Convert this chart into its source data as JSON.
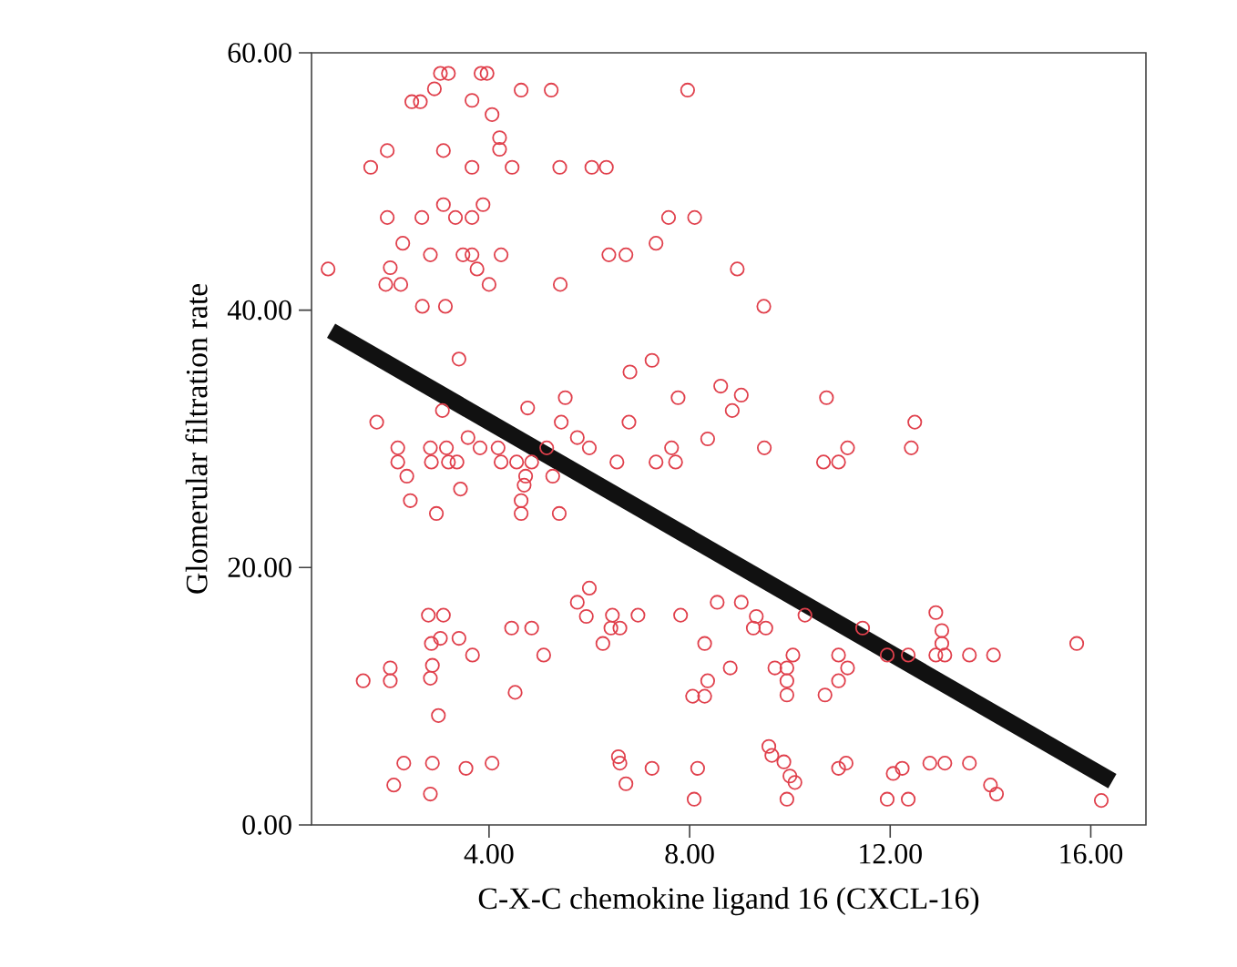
{
  "chart_data": {
    "type": "scatter",
    "xlabel": "C-X-C chemokine ligand 16 (CXCL-16)",
    "ylabel": "Glomerular filtration rate",
    "xlim": [
      0.46,
      17.1
    ],
    "ylim": [
      0,
      60
    ],
    "xticks": [
      {
        "value": 4,
        "label": "4.00"
      },
      {
        "value": 8,
        "label": "8.00"
      },
      {
        "value": 12,
        "label": "12.00"
      },
      {
        "value": 16,
        "label": "16.00"
      }
    ],
    "yticks": [
      {
        "value": 0,
        "label": "0.00"
      },
      {
        "value": 20,
        "label": "20.00"
      },
      {
        "value": 40,
        "label": "40.00"
      },
      {
        "value": 60,
        "label": "60.00"
      }
    ],
    "marker": "circle",
    "grid": false,
    "series": [
      {
        "color": "#e0404c",
        "x": [
          3.03,
          3.19,
          3.84,
          3.96,
          4.64,
          5.24,
          7.96,
          2.91,
          2.46,
          2.63,
          3.66,
          4.06,
          4.21,
          4.21,
          1.97,
          1.64,
          3.09,
          3.66,
          4.46,
          5.41,
          6.05,
          6.34,
          1.97,
          2.66,
          3.09,
          3.33,
          3.66,
          3.88,
          7.58,
          8.1,
          2.28,
          2.83,
          3.48,
          3.66,
          4.24,
          6.39,
          6.73,
          7.33,
          0.79,
          2.03,
          1.94,
          2.24,
          3.76,
          4.0,
          5.42,
          2.67,
          3.13,
          8.95,
          3.4,
          6.81,
          7.25,
          1.76,
          3.07,
          4.77,
          5.52,
          5.44,
          6.79,
          7.77,
          8.62,
          8.85,
          9.03,
          9.48,
          10.73,
          12.49,
          2.18,
          2.18,
          2.36,
          2.43,
          2.95,
          2.83,
          3.15,
          2.85,
          3.19,
          3.36,
          3.43,
          3.58,
          3.82,
          4.18,
          4.24,
          4.55,
          4.73,
          4.7,
          4.64,
          4.64,
          4.85,
          5.15,
          5.27,
          5.4,
          5.76,
          6.0,
          6.55,
          7.33,
          7.64,
          7.72,
          8.36,
          6.0,
          5.76,
          5.94,
          2.79,
          3.09,
          2.85,
          3.03,
          3.4,
          3.67,
          4.45,
          4.85,
          5.09,
          6.46,
          6.97,
          6.61,
          6.43,
          6.27,
          7.82,
          8.55,
          9.03,
          8.3,
          8.81,
          8.36,
          8.06,
          8.3,
          1.49,
          2.03,
          2.03,
          2.87,
          2.83,
          4.52,
          2.99,
          2.3,
          2.87,
          3.54,
          4.06,
          2.1,
          2.83,
          6.58,
          6.61,
          6.73,
          7.25,
          8.16,
          8.09,
          9.49,
          10.67,
          10.97,
          11.15,
          12.42,
          9.33,
          9.27,
          9.52,
          10.3,
          9.7,
          10.06,
          9.94,
          9.94,
          9.94,
          10.7,
          10.97,
          11.15,
          10.97,
          11.45,
          11.94,
          12.36,
          12.91,
          13.03,
          13.03,
          12.91,
          13.09,
          13.58,
          14.06,
          15.72,
          9.58,
          9.64,
          9.88,
          10.0,
          10.1,
          9.94,
          10.97,
          11.12,
          12.06,
          12.24,
          11.94,
          12.36,
          12.79,
          13.09,
          13.58,
          14.0,
          14.12,
          16.21
        ],
        "values": [
          58.4,
          58.4,
          58.4,
          58.4,
          57.1,
          57.1,
          57.1,
          57.2,
          56.2,
          56.2,
          56.3,
          55.2,
          53.4,
          52.5,
          52.4,
          51.1,
          52.4,
          51.1,
          51.1,
          51.1,
          51.1,
          51.1,
          47.2,
          47.2,
          48.2,
          47.2,
          47.2,
          48.2,
          47.2,
          47.2,
          45.2,
          44.3,
          44.3,
          44.3,
          44.3,
          44.3,
          44.3,
          45.2,
          43.2,
          43.3,
          42.0,
          42.0,
          43.2,
          42.0,
          42.0,
          40.3,
          40.3,
          43.2,
          36.2,
          35.2,
          36.1,
          31.3,
          32.2,
          32.4,
          33.2,
          31.3,
          31.3,
          33.2,
          34.1,
          32.2,
          33.4,
          40.3,
          33.2,
          31.3,
          29.3,
          28.2,
          27.1,
          25.2,
          24.2,
          29.3,
          29.3,
          28.2,
          28.2,
          28.2,
          26.1,
          30.1,
          29.3,
          29.3,
          28.2,
          28.2,
          27.1,
          26.4,
          25.2,
          24.2,
          28.2,
          29.3,
          27.1,
          24.2,
          30.1,
          29.3,
          28.2,
          28.2,
          29.3,
          28.2,
          30.0,
          18.4,
          17.3,
          16.2,
          16.3,
          16.3,
          14.1,
          14.5,
          14.5,
          13.2,
          15.3,
          15.3,
          13.2,
          16.3,
          16.3,
          15.3,
          15.3,
          14.1,
          16.3,
          17.3,
          17.3,
          14.1,
          12.2,
          11.2,
          10.0,
          10.0,
          11.2,
          12.2,
          11.2,
          12.4,
          11.4,
          10.3,
          8.5,
          4.8,
          4.8,
          4.4,
          4.8,
          3.1,
          2.4,
          5.3,
          4.8,
          3.2,
          4.4,
          4.4,
          2.0,
          29.3,
          28.2,
          28.2,
          29.3,
          29.3,
          16.2,
          15.3,
          15.3,
          16.3,
          12.2,
          13.2,
          12.2,
          11.2,
          10.1,
          10.1,
          13.2,
          12.2,
          11.2,
          15.3,
          13.2,
          13.2,
          16.5,
          15.1,
          14.1,
          13.2,
          13.2,
          13.2,
          13.2,
          14.1,
          6.1,
          5.4,
          4.9,
          3.8,
          3.3,
          2.0,
          4.4,
          4.8,
          4.0,
          4.4,
          2.0,
          2.0,
          4.8,
          4.8,
          4.8,
          3.1,
          2.4,
          1.9
        ]
      },
      {
        "type": "line",
        "color": "#111111",
        "marker": "none",
        "x": [
          0.85,
          16.43
        ],
        "values": [
          38.4,
          3.4
        ]
      }
    ]
  }
}
